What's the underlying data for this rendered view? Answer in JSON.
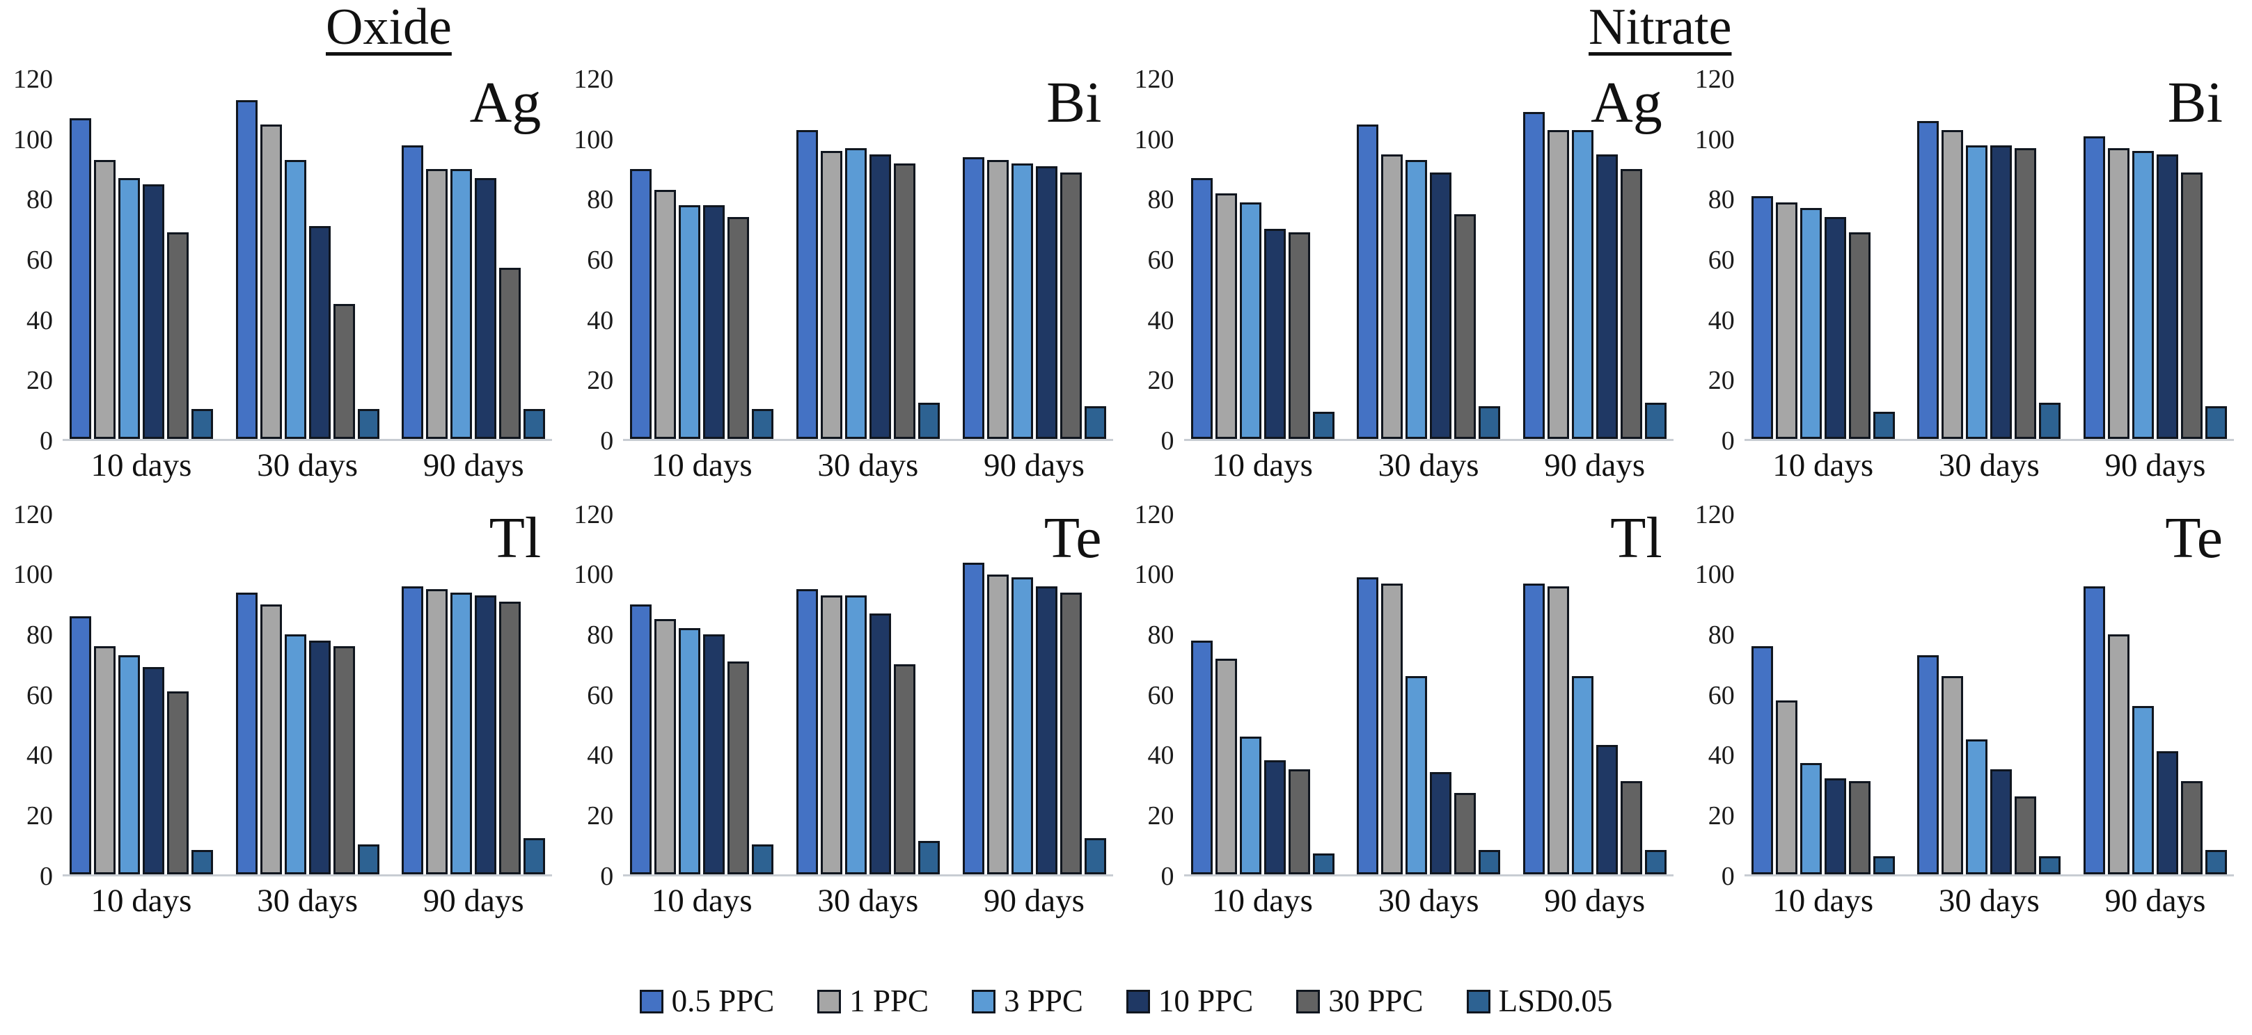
{
  "page": {
    "background": "#ffffff"
  },
  "titles": [
    {
      "text": "Oxide"
    },
    {
      "text": "Nitrate"
    }
  ],
  "legend": {
    "position": "bottom",
    "items": [
      {
        "label": "0.5 PPC",
        "color": "#4472c4"
      },
      {
        "label": "1 PPC",
        "color": "#a6a6a6"
      },
      {
        "label": "3 PPC",
        "color": "#5b9bd5"
      },
      {
        "label": "10 PPC",
        "color": "#1f3864"
      },
      {
        "label": "30 PPC",
        "color": "#636363"
      },
      {
        "label": "LSD0.05",
        "color": "#2d6292"
      }
    ]
  },
  "chart_data": [
    {
      "type": "bar",
      "group": "Oxide",
      "element": "Ag",
      "categories": [
        "10 days",
        "30 days",
        "90 days"
      ],
      "ylim": [
        0,
        120
      ],
      "yticks": [
        0,
        20,
        40,
        60,
        80,
        100,
        120
      ],
      "grid": false,
      "series": [
        {
          "name": "0.5 PPC",
          "values": [
            107,
            113,
            98
          ]
        },
        {
          "name": "1 PPC",
          "values": [
            93,
            105,
            90
          ]
        },
        {
          "name": "3 PPC",
          "values": [
            87,
            93,
            90
          ]
        },
        {
          "name": "10 PPC",
          "values": [
            85,
            71,
            87
          ]
        },
        {
          "name": "30 PPC",
          "values": [
            69,
            45,
            57
          ]
        },
        {
          "name": "LSD0.05",
          "values": [
            10,
            10,
            10
          ]
        }
      ]
    },
    {
      "type": "bar",
      "group": "Oxide",
      "element": "Bi",
      "categories": [
        "10 days",
        "30 days",
        "90 days"
      ],
      "ylim": [
        0,
        120
      ],
      "yticks": [
        0,
        20,
        40,
        60,
        80,
        100,
        120
      ],
      "grid": false,
      "series": [
        {
          "name": "0.5 PPC",
          "values": [
            90,
            103,
            94
          ]
        },
        {
          "name": "1 PPC",
          "values": [
            83,
            96,
            93
          ]
        },
        {
          "name": "3 PPC",
          "values": [
            78,
            97,
            92
          ]
        },
        {
          "name": "10 PPC",
          "values": [
            78,
            95,
            91
          ]
        },
        {
          "name": "30 PPC",
          "values": [
            74,
            92,
            89
          ]
        },
        {
          "name": "LSD0.05",
          "values": [
            10,
            12,
            11
          ]
        }
      ]
    },
    {
      "type": "bar",
      "group": "Nitrate",
      "element": "Ag",
      "categories": [
        "10 days",
        "30 days",
        "90 days"
      ],
      "ylim": [
        0,
        120
      ],
      "yticks": [
        0,
        20,
        40,
        60,
        80,
        100,
        120
      ],
      "grid": false,
      "series": [
        {
          "name": "0.5 PPC",
          "values": [
            87,
            105,
            109
          ]
        },
        {
          "name": "1 PPC",
          "values": [
            82,
            95,
            103
          ]
        },
        {
          "name": "3 PPC",
          "values": [
            79,
            93,
            103
          ]
        },
        {
          "name": "10 PPC",
          "values": [
            70,
            89,
            95
          ]
        },
        {
          "name": "30 PPC",
          "values": [
            69,
            75,
            90
          ]
        },
        {
          "name": "LSD0.05",
          "values": [
            9,
            11,
            12
          ]
        }
      ]
    },
    {
      "type": "bar",
      "group": "Nitrate",
      "element": "Bi",
      "categories": [
        "10 days",
        "30 days",
        "90 days"
      ],
      "ylim": [
        0,
        120
      ],
      "yticks": [
        0,
        20,
        40,
        60,
        80,
        100,
        120
      ],
      "grid": false,
      "series": [
        {
          "name": "0.5 PPC",
          "values": [
            81,
            106,
            101
          ]
        },
        {
          "name": "1 PPC",
          "values": [
            79,
            103,
            97
          ]
        },
        {
          "name": "3 PPC",
          "values": [
            77,
            98,
            96
          ]
        },
        {
          "name": "10 PPC",
          "values": [
            74,
            98,
            95
          ]
        },
        {
          "name": "30 PPC",
          "values": [
            69,
            97,
            89
          ]
        },
        {
          "name": "LSD0.05",
          "values": [
            9,
            12,
            11
          ]
        }
      ]
    },
    {
      "type": "bar",
      "group": "Oxide",
      "element": "Tl",
      "categories": [
        "10 days",
        "30 days",
        "90 days"
      ],
      "ylim": [
        0,
        120
      ],
      "yticks": [
        0,
        20,
        40,
        60,
        80,
        100,
        120
      ],
      "grid": false,
      "series": [
        {
          "name": "0.5 PPC",
          "values": [
            86,
            94,
            96
          ]
        },
        {
          "name": "1 PPC",
          "values": [
            76,
            90,
            95
          ]
        },
        {
          "name": "3 PPC",
          "values": [
            73,
            80,
            94
          ]
        },
        {
          "name": "10 PPC",
          "values": [
            69,
            78,
            93
          ]
        },
        {
          "name": "30 PPC",
          "values": [
            61,
            76,
            91
          ]
        },
        {
          "name": "LSD0.05",
          "values": [
            8,
            10,
            12
          ]
        }
      ]
    },
    {
      "type": "bar",
      "group": "Oxide",
      "element": "Te",
      "categories": [
        "10 days",
        "30 days",
        "90 days"
      ],
      "ylim": [
        0,
        120
      ],
      "yticks": [
        0,
        20,
        40,
        60,
        80,
        100,
        120
      ],
      "grid": false,
      "series": [
        {
          "name": "0.5 PPC",
          "values": [
            90,
            95,
            104
          ]
        },
        {
          "name": "1 PPC",
          "values": [
            85,
            93,
            100
          ]
        },
        {
          "name": "3 PPC",
          "values": [
            82,
            93,
            99
          ]
        },
        {
          "name": "10 PPC",
          "values": [
            80,
            87,
            96
          ]
        },
        {
          "name": "30 PPC",
          "values": [
            71,
            70,
            94
          ]
        },
        {
          "name": "LSD0.05",
          "values": [
            10,
            11,
            12
          ]
        }
      ]
    },
    {
      "type": "bar",
      "group": "Nitrate",
      "element": "Tl",
      "categories": [
        "10 days",
        "30 days",
        "90 days"
      ],
      "ylim": [
        0,
        120
      ],
      "yticks": [
        0,
        20,
        40,
        60,
        80,
        100,
        120
      ],
      "grid": false,
      "series": [
        {
          "name": "0.5 PPC",
          "values": [
            78,
            99,
            97
          ]
        },
        {
          "name": "1 PPC",
          "values": [
            72,
            97,
            96
          ]
        },
        {
          "name": "3 PPC",
          "values": [
            46,
            66,
            66
          ]
        },
        {
          "name": "10 PPC",
          "values": [
            38,
            34,
            43
          ]
        },
        {
          "name": "30 PPC",
          "values": [
            35,
            27,
            31
          ]
        },
        {
          "name": "LSD0.05",
          "values": [
            7,
            8,
            8
          ]
        }
      ]
    },
    {
      "type": "bar",
      "group": "Nitrate",
      "element": "Te",
      "categories": [
        "10 days",
        "30 days",
        "90 days"
      ],
      "ylim": [
        0,
        120
      ],
      "yticks": [
        0,
        20,
        40,
        60,
        80,
        100,
        120
      ],
      "grid": false,
      "series": [
        {
          "name": "0.5 PPC",
          "values": [
            76,
            73,
            96
          ]
        },
        {
          "name": "1 PPC",
          "values": [
            58,
            66,
            80
          ]
        },
        {
          "name": "3 PPC",
          "values": [
            37,
            45,
            56
          ]
        },
        {
          "name": "10 PPC",
          "values": [
            32,
            35,
            41
          ]
        },
        {
          "name": "30 PPC",
          "values": [
            31,
            26,
            31
          ]
        },
        {
          "name": "LSD0.05",
          "values": [
            6,
            6,
            8
          ]
        }
      ]
    }
  ],
  "grid_order": [
    0,
    1,
    2,
    3,
    4,
    5,
    6,
    7
  ]
}
